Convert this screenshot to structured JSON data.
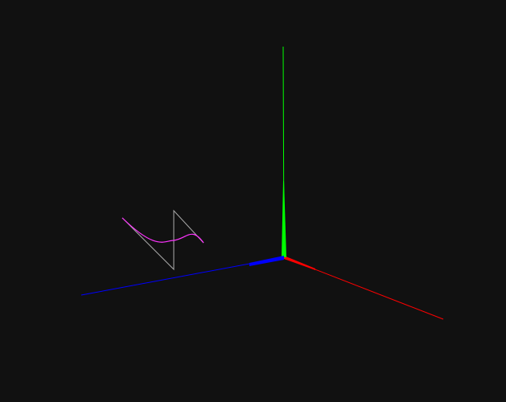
{
  "viewport": {
    "background": "#111111"
  },
  "axes": {
    "x_color": "#ff0000",
    "y_color": "#00ff00",
    "z_color": "#0000ff"
  },
  "curve": {
    "color": "#ff33ff"
  },
  "control_polygon": {
    "color": "#aaaaaa"
  }
}
